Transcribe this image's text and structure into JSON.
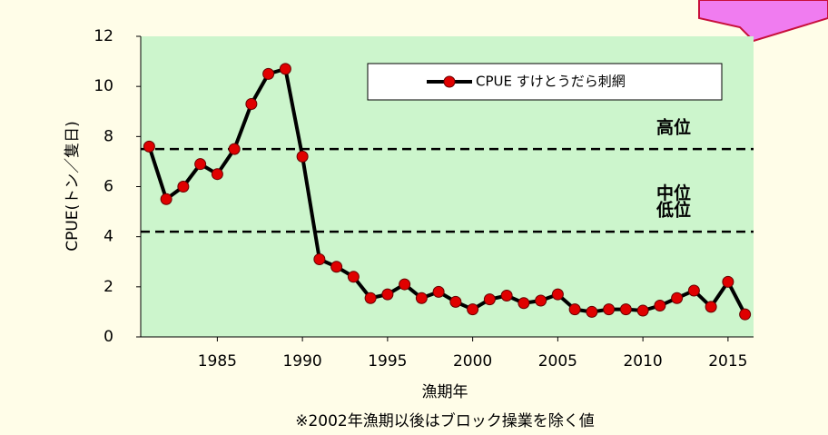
{
  "chart_data": {
    "type": "line",
    "x_label": "漁期年",
    "y_label": "CPUE(トン／隻日)",
    "note": "※2002年漁期以後はブロック操業を除く値",
    "x": [
      1981,
      1982,
      1983,
      1984,
      1985,
      1986,
      1987,
      1988,
      1989,
      1990,
      1991,
      1992,
      1993,
      1994,
      1995,
      1996,
      1997,
      1998,
      1999,
      2000,
      2001,
      2002,
      2003,
      2004,
      2005,
      2006,
      2007,
      2008,
      2009,
      2010,
      2011,
      2012,
      2013,
      2014,
      2015,
      2016
    ],
    "series": [
      {
        "name": "CPUE すけとうだら刺網",
        "color": "#e00000",
        "values": [
          7.6,
          5.5,
          6.0,
          6.9,
          6.5,
          7.5,
          9.3,
          10.5,
          10.7,
          7.2,
          3.1,
          2.8,
          2.4,
          1.55,
          1.7,
          2.1,
          1.55,
          1.8,
          1.4,
          1.1,
          1.5,
          1.65,
          1.35,
          1.45,
          1.7,
          1.1,
          1.0,
          1.1,
          1.1,
          1.05,
          1.25,
          1.55,
          1.85,
          1.2,
          2.2,
          0.9
        ]
      }
    ],
    "xlim": [
      1980.5,
      2016.5
    ],
    "xticks": [
      1985,
      1990,
      1995,
      2000,
      2005,
      2010,
      2015
    ],
    "ylim": [
      0,
      12
    ],
    "yticks": [
      0,
      2,
      4,
      6,
      8,
      10,
      12
    ],
    "reference_lines": [
      {
        "value": 7.5,
        "label": "高位"
      },
      {
        "value": 4.2,
        "label": "低位"
      }
    ],
    "zone_labels": [
      {
        "value": 6.0,
        "label": "中位"
      }
    ],
    "legend": "upper right"
  }
}
